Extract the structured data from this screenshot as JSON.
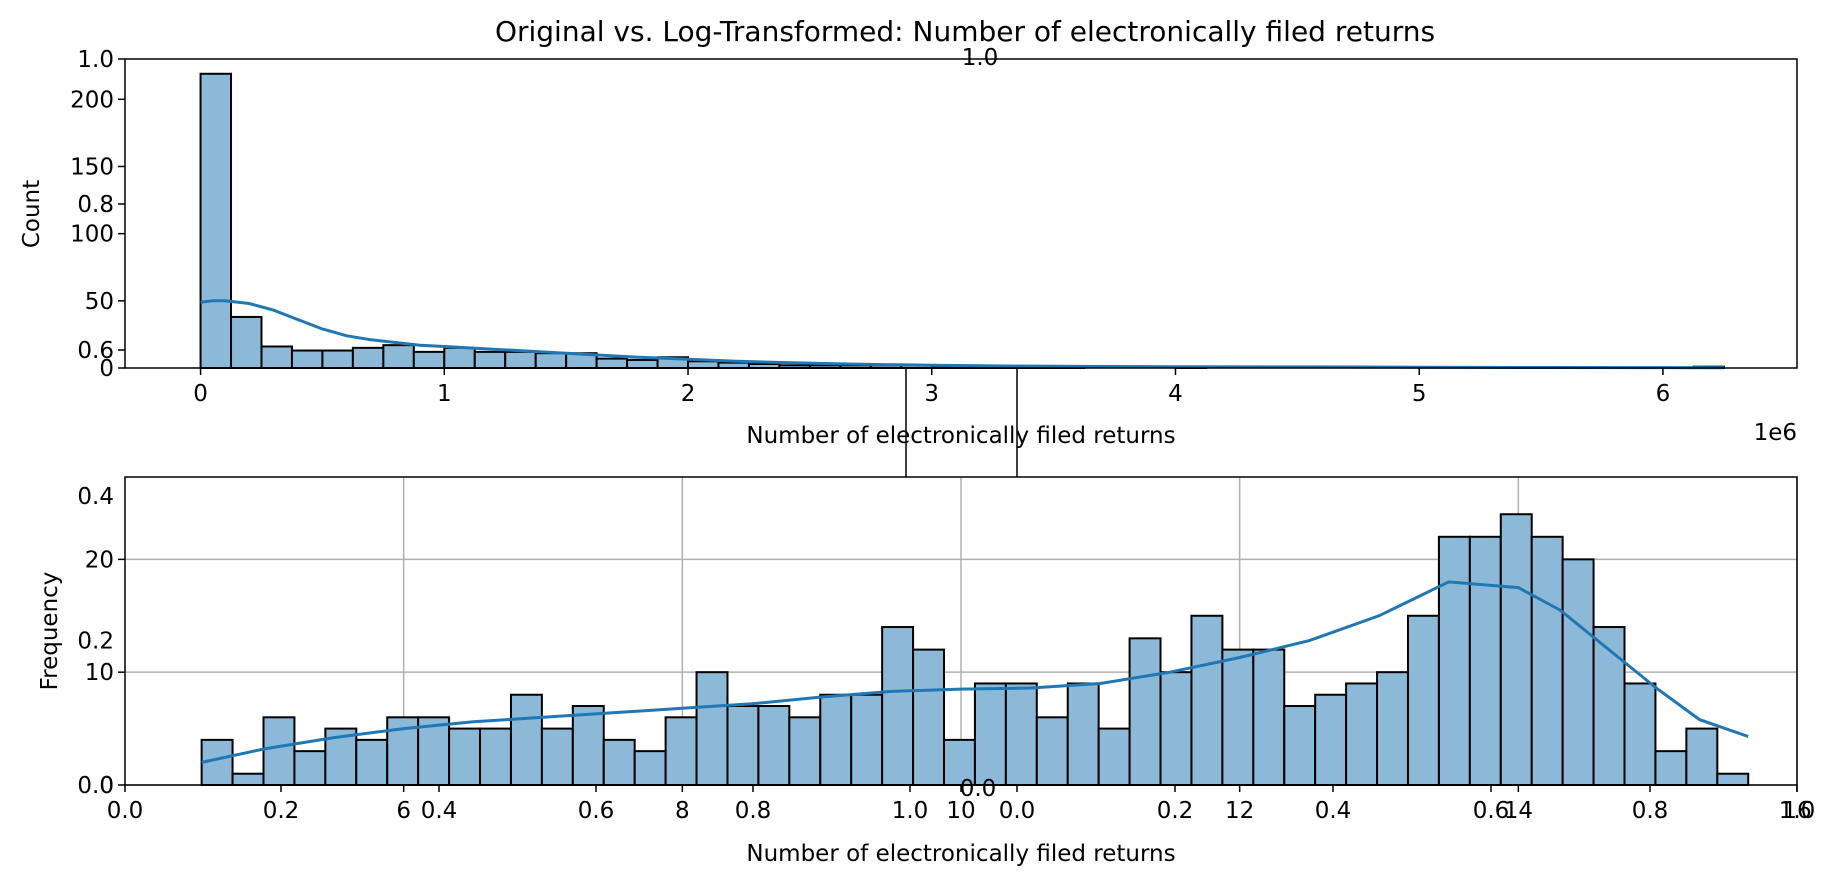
{
  "title": "Original vs. Log-Transformed: Number of electronically filed returns",
  "colors": {
    "bar_fill": "#8db9d9",
    "bar_edge": "#000000",
    "kde": "#1f77b4",
    "grid": "#b0b0b0"
  },
  "chart_data": [
    {
      "type": "bar",
      "subtype": "histogram",
      "kde": true,
      "xlabel": "Number of electronically filed returns",
      "ylabel": "Count",
      "x_offset_text": "1e6",
      "xlim": [
        -0.31,
        6.55
      ],
      "ylim": [
        0,
        230
      ],
      "xticks": [
        0,
        1,
        2,
        3,
        4,
        5,
        6
      ],
      "yticks": [
        0,
        50,
        100,
        150,
        200
      ],
      "overlay_yticks": [
        "0.6",
        "0.8",
        "1.0"
      ],
      "grid": false,
      "bin_edges": [
        0.0,
        0.125,
        0.25,
        0.375,
        0.5,
        0.625,
        0.75,
        0.875,
        1.0,
        1.125,
        1.25,
        1.375,
        1.5,
        1.625,
        1.75,
        1.875,
        2.0,
        2.125,
        2.25,
        2.375,
        2.5,
        2.625,
        2.75,
        2.875,
        3.0,
        3.125,
        3.25,
        3.375,
        3.5,
        3.625,
        3.75,
        3.875,
        4.0,
        4.125,
        4.25,
        4.375,
        4.5,
        4.625,
        4.75,
        4.875,
        5.0,
        5.125,
        5.25,
        5.375,
        5.5,
        5.625,
        5.75,
        5.875,
        6.0,
        6.125,
        6.25
      ],
      "values": [
        219,
        38,
        16,
        13,
        13,
        15,
        17,
        12,
        15,
        12,
        12,
        11,
        11,
        7,
        6,
        8,
        5,
        4,
        3,
        2,
        2,
        2,
        2,
        2,
        1,
        1,
        1,
        1,
        1,
        0,
        0,
        0,
        1,
        0,
        0,
        0,
        0,
        0,
        0,
        0,
        0,
        0,
        0,
        0,
        0,
        0,
        0,
        0,
        0,
        1
      ],
      "kde_x": [
        0,
        0.05,
        0.1,
        0.2,
        0.3,
        0.4,
        0.5,
        0.6,
        0.7,
        0.8,
        0.9,
        1.0,
        1.2,
        1.4,
        1.6,
        1.8,
        2.0,
        2.2,
        2.4,
        2.6,
        2.8,
        3.0,
        3.3,
        3.6,
        4.0,
        4.5,
        5.0,
        5.5,
        6.0,
        6.25
      ],
      "kde_y": [
        49,
        50,
        50,
        48,
        43,
        36,
        29,
        24,
        21,
        19,
        17,
        16,
        14,
        12,
        10,
        8,
        6.5,
        5,
        4,
        3.2,
        2.5,
        2,
        1.5,
        1.2,
        1,
        0.8,
        0.6,
        0.4,
        0.3,
        0.2
      ]
    },
    {
      "type": "bar",
      "subtype": "histogram",
      "kde": true,
      "xlabel": "Number of electronically filed returns",
      "ylabel": "Frequency",
      "xlim": [
        4.0,
        16.0
      ],
      "ylim": [
        0,
        27.3
      ],
      "xticks": [
        6,
        8,
        10,
        12,
        14,
        16
      ],
      "xtick_labels": [
        "6",
        "8",
        "10",
        "12",
        "14",
        "16"
      ],
      "yticks": [
        0,
        10,
        20
      ],
      "overlay_xticks": [
        "0.0",
        "0.2",
        "0.4",
        "0.6",
        "0.8",
        "1.0",
        "0.0",
        "0.2",
        "0.4",
        "0.6",
        "0.8",
        "1.0"
      ],
      "overlay_yticks": [
        "0.0",
        "0.2",
        "0.4"
      ],
      "overlay_center_label": "0.0",
      "grid": true,
      "bin_edges": [
        4.55,
        4.772,
        4.994,
        5.216,
        5.438,
        5.66,
        5.882,
        6.104,
        6.326,
        6.548,
        6.77,
        6.992,
        7.214,
        7.436,
        7.658,
        7.88,
        8.102,
        8.324,
        8.546,
        8.768,
        8.99,
        9.212,
        9.434,
        9.656,
        9.878,
        10.1,
        10.322,
        10.544,
        10.766,
        10.988,
        11.21,
        11.432,
        11.654,
        11.876,
        12.098,
        12.32,
        12.542,
        12.764,
        12.986,
        13.208,
        13.43,
        13.652,
        13.874,
        14.096,
        14.318,
        14.54,
        14.762,
        14.984,
        15.206,
        15.428,
        15.65
      ],
      "values": [
        4,
        1,
        6,
        3,
        5,
        4,
        6,
        6,
        5,
        5,
        8,
        5,
        7,
        4,
        3,
        6,
        10,
        7,
        7,
        6,
        8,
        8,
        14,
        12,
        4,
        9,
        9,
        6,
        9,
        5,
        13,
        10,
        15,
        12,
        12,
        7,
        8,
        9,
        10,
        15,
        22,
        22,
        24,
        22,
        20,
        14,
        9,
        3,
        5,
        1
      ],
      "kde_x": [
        4.55,
        5.0,
        5.5,
        6.0,
        6.5,
        7.0,
        7.5,
        8.0,
        8.5,
        9.0,
        9.5,
        10.0,
        10.5,
        11.0,
        11.5,
        12.0,
        12.5,
        13.0,
        13.5,
        14.0,
        14.3,
        14.6,
        15.0,
        15.3,
        15.65
      ],
      "kde_y": [
        2.0,
        3.2,
        4.2,
        5.0,
        5.6,
        6.0,
        6.4,
        6.8,
        7.2,
        7.8,
        8.3,
        8.5,
        8.6,
        9.0,
        10.0,
        11.3,
        12.8,
        15.0,
        18.0,
        17.5,
        15.5,
        12.5,
        8.5,
        5.8,
        4.3
      ]
    }
  ]
}
